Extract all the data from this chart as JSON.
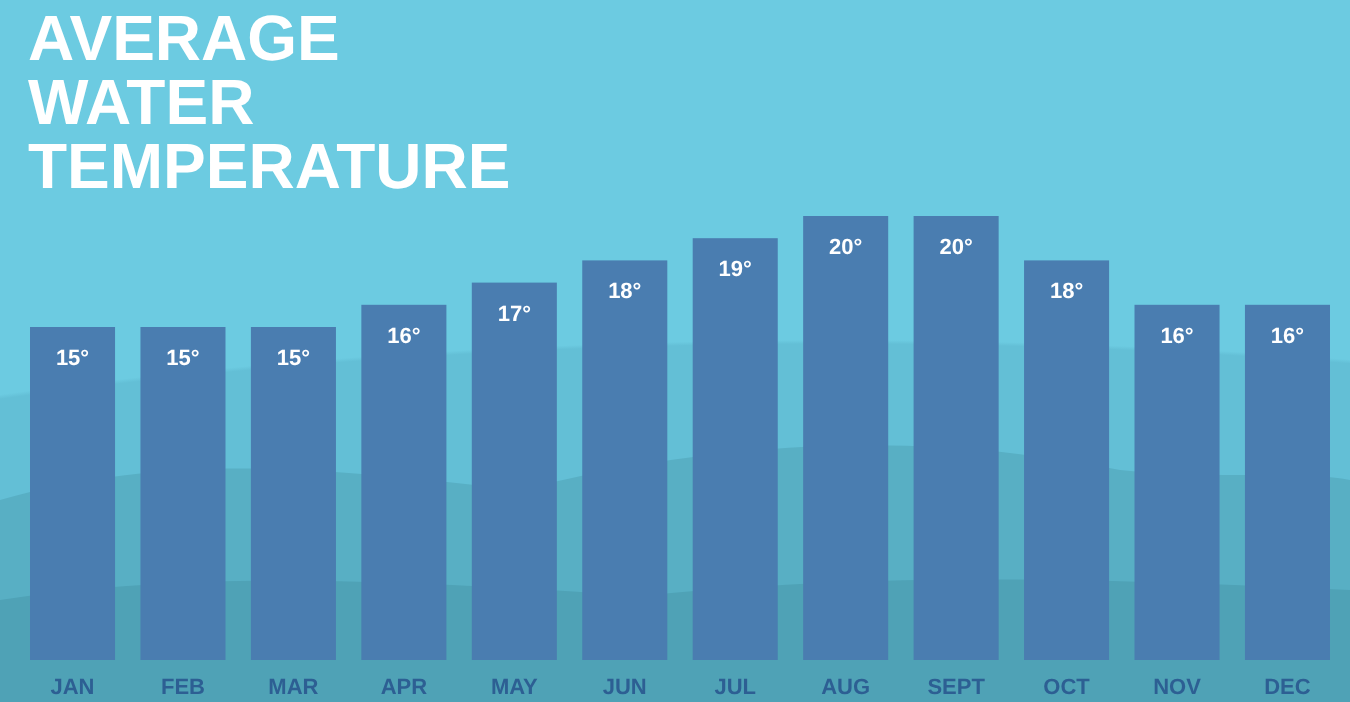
{
  "chart_data": {
    "type": "bar",
    "title": "AVERAGE WATER TEMPERATURE",
    "categories": [
      "JAN",
      "FEB",
      "MAR",
      "APR",
      "MAY",
      "JUN",
      "JUL",
      "AUG",
      "SEPT",
      "OCT",
      "NOV",
      "DEC"
    ],
    "values": [
      15,
      15,
      15,
      16,
      17,
      18,
      19,
      20,
      20,
      18,
      16,
      16
    ],
    "value_labels": [
      "15°",
      "15°",
      "15°",
      "16°",
      "17°",
      "18°",
      "19°",
      "20°",
      "20°",
      "18°",
      "16°",
      "16°"
    ],
    "color": "#4a7db0",
    "tick_labels": "x",
    "grid": false
  }
}
